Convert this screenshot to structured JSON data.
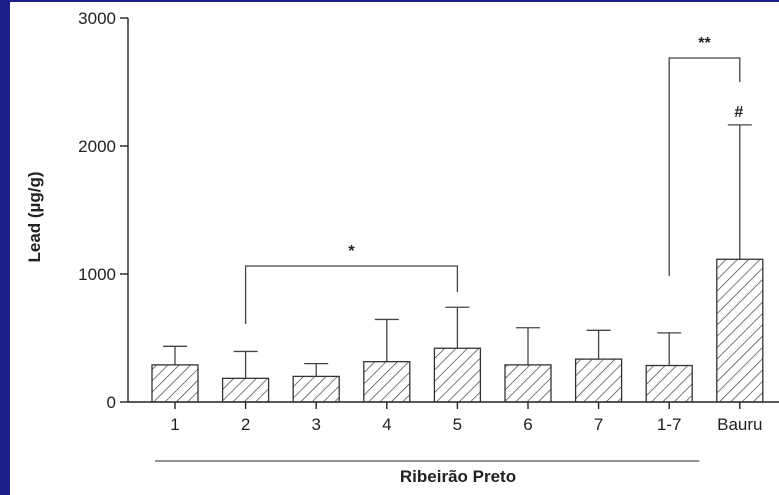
{
  "chart_data": {
    "type": "bar",
    "categories": [
      "1",
      "2",
      "3",
      "4",
      "5",
      "6",
      "7",
      "1-7",
      "Bauru"
    ],
    "values": [
      290,
      185,
      200,
      315,
      420,
      290,
      335,
      285,
      1115
    ],
    "error_upper": [
      435,
      395,
      300,
      645,
      740,
      580,
      560,
      540,
      2165
    ],
    "ylabel": "Lead (µg/g)",
    "xlabel": "Ribeirão Preto",
    "ylim": [
      0,
      3000
    ],
    "yticks": [
      0,
      1000,
      2000,
      3000
    ],
    "grid": false,
    "bar_fill": "hatched",
    "annotations": [
      {
        "text": "*",
        "type": "bracket",
        "from": "2",
        "to": "5"
      },
      {
        "text": "**",
        "type": "bracket",
        "from": "1-7",
        "to": "Bauru"
      },
      {
        "text": "#",
        "type": "label",
        "category": "Bauru"
      }
    ]
  },
  "colors": {
    "border": "#1a1f8c",
    "ink": "#222222"
  }
}
